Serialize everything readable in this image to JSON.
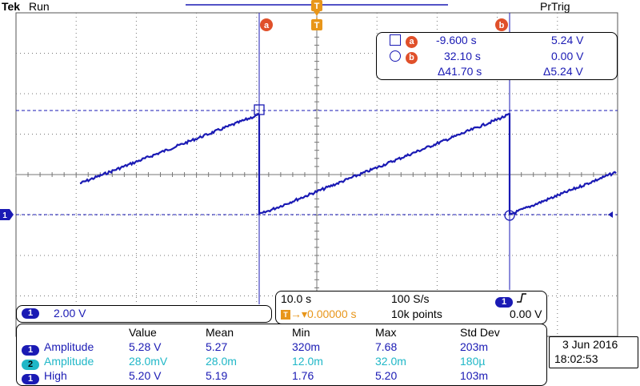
{
  "header": {
    "brand": "Tek",
    "mode": "Run",
    "trigger_state": "PrTrig"
  },
  "markers": {
    "cursor_a": "a",
    "cursor_b": "b",
    "trigger": "T",
    "ground_ch1": "1"
  },
  "cursor_readout": {
    "a_time": "-9.600 s",
    "a_value": "5.24 V",
    "b_time": "32.10 s",
    "b_value": "0.00 V",
    "delta_time": "Δ41.70 s",
    "delta_value": "Δ5.24 V"
  },
  "channel1": {
    "label": "1",
    "scale": "2.00 V"
  },
  "timebase": {
    "scale": "10.0 s",
    "sample_rate": "100 S/s",
    "trigger_position": "▾0.00000 s",
    "record_length": "10k points",
    "trigger_channel": "1",
    "trigger_slope_icon": "rising-edge",
    "trigger_level": "0.00 V"
  },
  "measurements": {
    "headers": [
      "Value",
      "Mean",
      "Min",
      "Max",
      "Std Dev"
    ],
    "rows": [
      {
        "ch": "1",
        "name": "Amplitude",
        "value": "5.28 V",
        "mean": "5.27",
        "min": "320m",
        "max": "7.68",
        "std": "203m"
      },
      {
        "ch": "2",
        "name": "Amplitude",
        "value": "28.0mV",
        "mean": "28.0m",
        "min": "12.0m",
        "max": "32.0m",
        "std": "180µ"
      },
      {
        "ch": "1",
        "name": "High",
        "value": "5.20 V",
        "mean": "5.19",
        "min": "1.76",
        "max": "5.20",
        "std": "103m"
      }
    ]
  },
  "datetime": {
    "date": "3 Jun 2016",
    "time": "18:02:53"
  },
  "colors": {
    "ch1": "#1a1ab4",
    "ch2": "#1fb7c7",
    "trigger": "#e8961a",
    "cursor_marker": "#e0502a",
    "grid": "#000000"
  }
}
